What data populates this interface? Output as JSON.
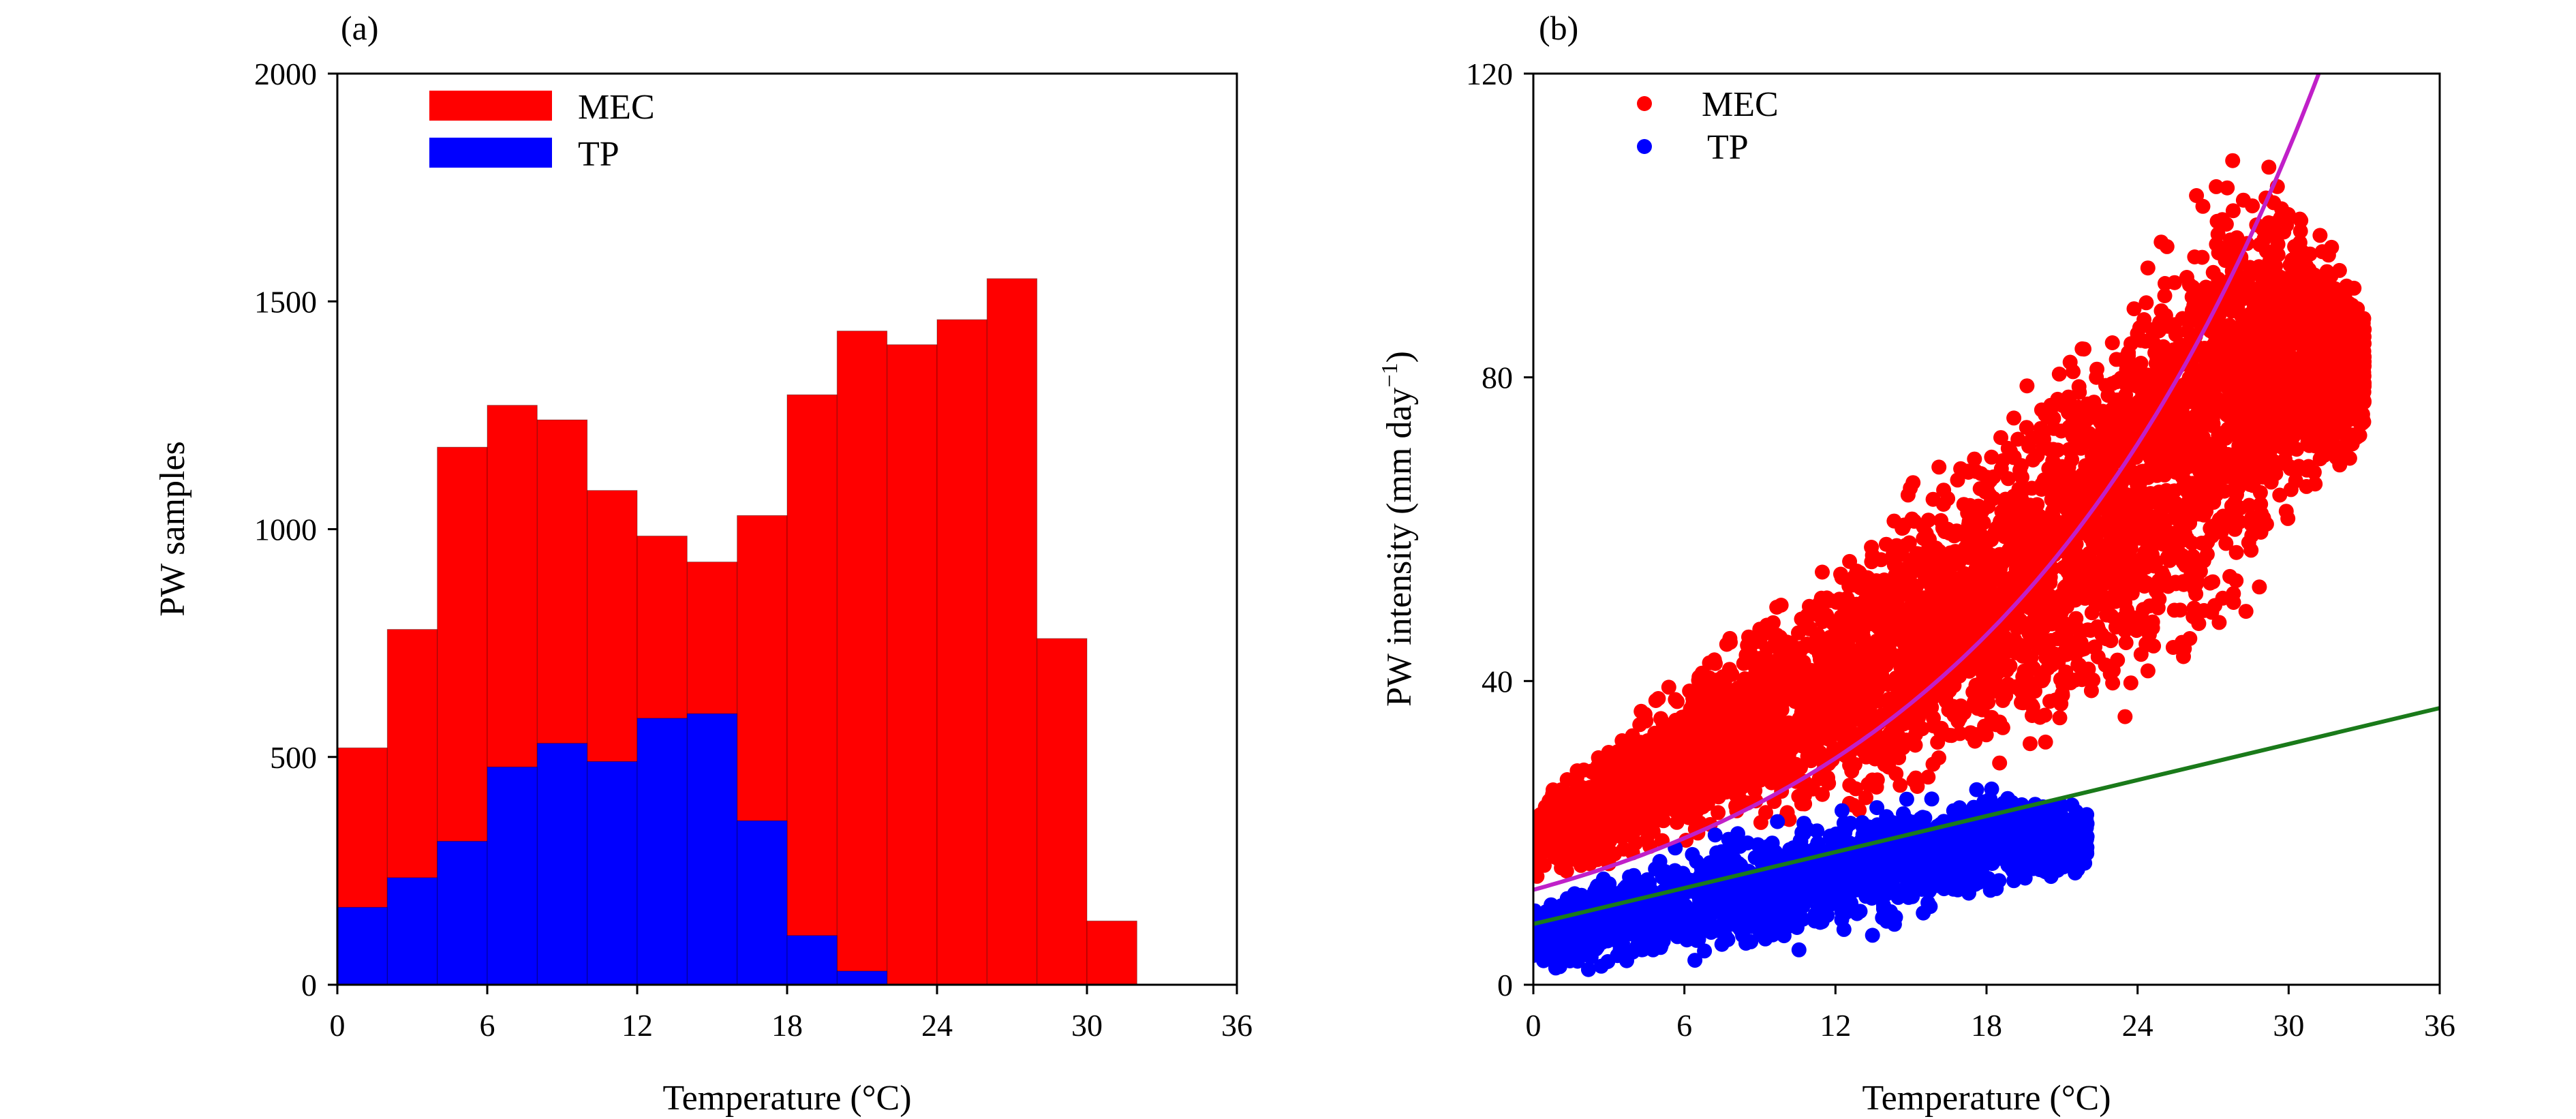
{
  "colors": {
    "mec": "#ff0000",
    "tp": "#0000ff",
    "mec_fit": "#c020c8",
    "tp_fit": "#1a7a1a"
  },
  "chart_data": [
    {
      "type": "bar",
      "stacked": "overlay",
      "panel_label": "(a)",
      "title": "",
      "xlabel": "Temperature (°C)",
      "ylabel": "PW samples",
      "xlim": [
        0,
        36
      ],
      "ylim": [
        0,
        2000
      ],
      "xticks": [
        "0",
        "6",
        "12",
        "18",
        "24",
        "30",
        "36"
      ],
      "yticks": [
        "0",
        "500",
        "1000",
        "1500",
        "2000"
      ],
      "xtick_values": [
        0,
        6,
        12,
        18,
        24,
        30,
        36
      ],
      "ytick_values": [
        0,
        500,
        1000,
        1500,
        2000
      ],
      "bin_width": 2,
      "bin_starts": [
        0,
        2,
        4,
        6,
        8,
        10,
        12,
        14,
        16,
        18,
        20,
        22,
        24,
        26,
        28,
        30
      ],
      "legend_position": "top-left",
      "series": [
        {
          "name": "MEC",
          "values": [
            520,
            780,
            1180,
            1272,
            1240,
            1085,
            985,
            928,
            1030,
            1295,
            1435,
            1405,
            1460,
            1550,
            760,
            140
          ]
        },
        {
          "name": "TP",
          "values": [
            170,
            235,
            315,
            478,
            530,
            490,
            585,
            595,
            360,
            108,
            30,
            0,
            0,
            0,
            0,
            0
          ]
        }
      ]
    },
    {
      "type": "scatter",
      "panel_label": "(b)",
      "title": "",
      "xlabel": "Temperature (°C)",
      "ylabel": "PW intensity (mm day",
      "ylabel_sup": "−1",
      "ylabel_end": ")",
      "xlim": [
        0,
        36
      ],
      "ylim": [
        0,
        120
      ],
      "xticks": [
        "0",
        "6",
        "12",
        "18",
        "24",
        "30",
        "36"
      ],
      "yticks": [
        "0",
        "40",
        "80",
        "120"
      ],
      "xtick_values": [
        0,
        6,
        12,
        18,
        24,
        30,
        36
      ],
      "ytick_values": [
        0,
        40,
        80,
        120
      ],
      "legend_position": "top-left",
      "series": [
        {
          "name": "MEC",
          "description": "dense cloud, x from 0 to about 33 °C, upper envelope rises from ~24 to ~113, lower envelope ~12 to ~30",
          "envelope": {
            "x": [
              0,
              3,
              6,
              9,
              12,
              15,
              18,
              21,
              24,
              27,
              29,
              31,
              33
            ],
            "upper": [
              25,
              33,
              43,
              52,
              60,
              68,
              78,
              88,
              100,
              111,
              113,
              104,
              92
            ],
            "lower": [
              13,
              14,
              16,
              18,
              20,
              22,
              24,
              26,
              32,
              40,
              50,
              60,
              70
            ]
          }
        },
        {
          "name": "TP",
          "description": "cloud x from 0 to about 22 °C, intensity ~1 to ~27",
          "envelope": {
            "x": [
              0,
              3,
              6,
              9,
              12,
              15,
              18,
              20,
              22
            ],
            "upper": [
              12,
              16,
              20,
              22,
              25,
              26,
              27,
              26,
              24
            ],
            "lower": [
              1,
              1,
              2,
              3,
              5,
              7,
              10,
              12,
              15
            ]
          }
        }
      ],
      "fits": [
        {
          "name": "MEC fit",
          "type": "exponential",
          "a": 12.5,
          "b": 0.0725,
          "x_range": [
            0,
            31.3
          ]
        },
        {
          "name": "TP fit",
          "type": "linear",
          "intercept": 8,
          "slope": 0.79,
          "x_range": [
            0,
            36
          ]
        }
      ]
    }
  ]
}
